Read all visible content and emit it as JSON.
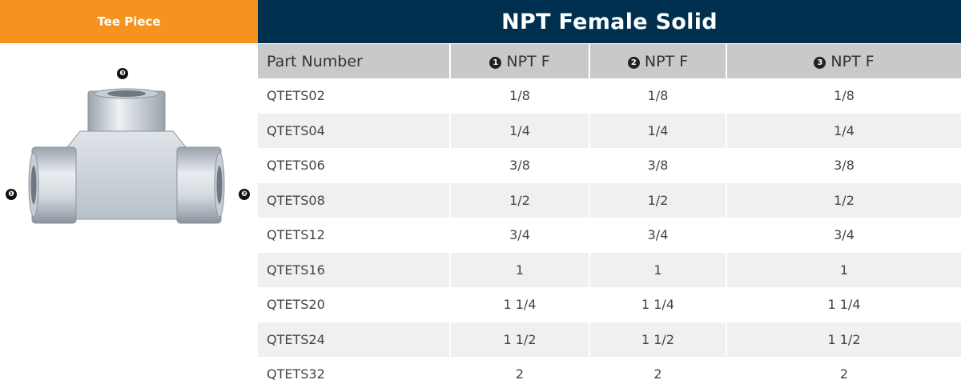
{
  "left_panel": {
    "title": "Tee Piece",
    "callouts": [
      "❸",
      "❶",
      "❷"
    ]
  },
  "table": {
    "title": "NPT Female Solid",
    "headers": [
      {
        "num": "",
        "label": "Part Number"
      },
      {
        "num": "1",
        "label": "NPT F"
      },
      {
        "num": "2",
        "label": "NPT F"
      },
      {
        "num": "3",
        "label": "NPT F"
      }
    ],
    "rows": [
      [
        "QTETS02",
        "1/8",
        "1/8",
        "1/8"
      ],
      [
        "QTETS04",
        "1/4",
        "1/4",
        "1/4"
      ],
      [
        "QTETS06",
        "3/8",
        "3/8",
        "3/8"
      ],
      [
        "QTETS08",
        "1/2",
        "1/2",
        "1/2"
      ],
      [
        "QTETS12",
        "3/4",
        "3/4",
        "3/4"
      ],
      [
        "QTETS16",
        "1",
        "1",
        "1"
      ],
      [
        "QTETS20",
        "1 1/4",
        "1 1/4",
        "1 1/4"
      ],
      [
        "QTETS24",
        "1 1/2",
        "1 1/2",
        "1 1/2"
      ],
      [
        "QTETS32",
        "2",
        "2",
        "2"
      ]
    ]
  },
  "colors": {
    "orange_header": "#f5931e",
    "navy_header": "#00304f",
    "column_header_bg": "#c8c9cb",
    "stripe": "#f0f0f1"
  },
  "icons": [
    "tee-fitting-image",
    "port-callout-icon"
  ]
}
